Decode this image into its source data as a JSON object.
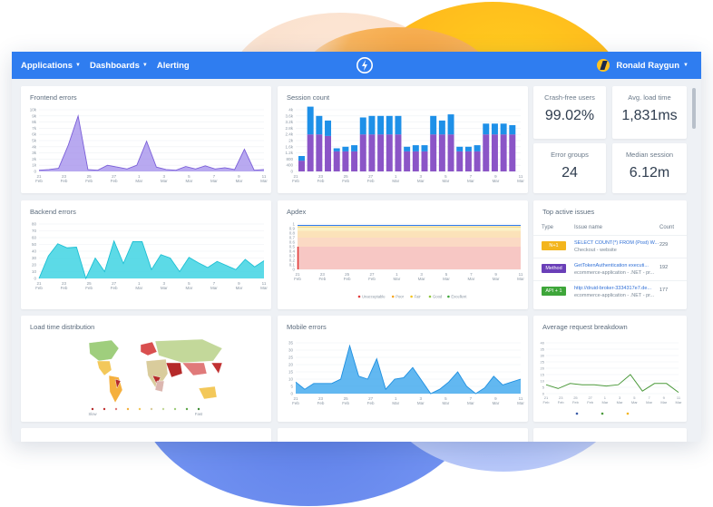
{
  "nav": {
    "applications": "Applications",
    "dashboards": "Dashboards",
    "alerting": "Alerting",
    "user_name": "Ronald Raygun"
  },
  "colors": {
    "brand": "#2f7df0",
    "purple": "#8b6fe0",
    "cyan": "#3fd3e3",
    "blue": "#2d8ee8",
    "green": "#4c9a3c"
  },
  "cards": {
    "frontend_errors": {
      "title": "Frontend errors",
      "yticks": [
        "10k",
        "9k",
        "8k",
        "7k",
        "6k",
        "5k",
        "4k",
        "3k",
        "2k",
        "1k",
        "0"
      ],
      "values": [
        0.2,
        0.3,
        0.5,
        4.3,
        9,
        0.3,
        0.2,
        1,
        0.7,
        0.4,
        1,
        4.9,
        0.7,
        0.3,
        0.2,
        0.8,
        0.4,
        0.9,
        0.4,
        0.6,
        0.3,
        3.6,
        0.2,
        0.3
      ]
    },
    "session_count": {
      "title": "Session count",
      "yticks": [
        "4k",
        "3.6k",
        "3.2k",
        "2.8k",
        "2.4k",
        "2k",
        "1.6k",
        "1.2k",
        "800",
        "400",
        "0"
      ],
      "stack_a": [
        0.7,
        2.4,
        2.4,
        2.3,
        1.3,
        1.3,
        1.3,
        2.4,
        2.4,
        2.4,
        2.4,
        2.4,
        1.3,
        1.3,
        1.3,
        2.4,
        2.4,
        2.4,
        1.3,
        1.3,
        1.3,
        2.4,
        2.4,
        2.4,
        2.4
      ],
      "stack_b": [
        0.3,
        1.8,
        1.2,
        1.0,
        0.2,
        0.3,
        0.4,
        1.1,
        1.2,
        1.2,
        1.2,
        1.2,
        0.3,
        0.4,
        0.4,
        1.2,
        0.9,
        1.3,
        0.3,
        0.3,
        0.4,
        0.7,
        0.7,
        0.7,
        0.6
      ]
    },
    "crash_free": {
      "label": "Crash-free users",
      "value": "99.02%"
    },
    "avg_load": {
      "label": "Avg. load time",
      "value": "1,831ms"
    },
    "error_groups": {
      "label": "Error groups",
      "value": "24"
    },
    "median_session": {
      "label": "Median session",
      "value": "6.12m"
    },
    "backend_errors": {
      "title": "Backend errors",
      "yticks": [
        "80",
        "70",
        "60",
        "50",
        "40",
        "30",
        "20",
        "10",
        "0"
      ],
      "values": [
        0,
        33,
        51,
        45,
        46,
        0,
        30,
        10,
        55,
        22,
        54,
        54,
        13,
        35,
        30,
        10,
        31,
        23,
        16,
        25,
        19,
        13,
        28,
        17,
        26
      ]
    },
    "apdex": {
      "title": "Apdex",
      "yticks": [
        "1",
        "0.9",
        "0.8",
        "0.7",
        "0.6",
        "0.5",
        "0.4",
        "0.3",
        "0.2",
        "0.1",
        "0"
      ],
      "legend": [
        "Unacceptable",
        "Poor",
        "Fair",
        "Good",
        "Excellent"
      ]
    },
    "top_issues": {
      "title": "Top active issues",
      "col_type": "Type",
      "col_name": "Issue name",
      "col_count": "Count",
      "rows": [
        {
          "badge": "N+1",
          "color": "#f3b51d",
          "name": "SELECT COUNT(*) FROM (Post) W...",
          "sub": "Checkout - website",
          "count": "229"
        },
        {
          "badge": "Method",
          "color": "#6a3fb8",
          "name": "GetTokenAuthentication executi...",
          "sub": "ecommerce-application - .NET - pr...",
          "count": "192"
        },
        {
          "badge": "API + 1",
          "color": "#3ea63a",
          "name": "http://druid-broker-3334317e7.de...",
          "sub": "ecommerce-application - .NET - pr...",
          "count": "177"
        }
      ]
    },
    "load_time": {
      "title": "Load time distribution",
      "legend_min": "Slow",
      "legend_max": "Fast"
    },
    "mobile_errors": {
      "title": "Mobile errors",
      "yticks": [
        "35",
        "30",
        "25",
        "20",
        "15",
        "10",
        "5",
        "0"
      ],
      "values": [
        8,
        3,
        7,
        7,
        7,
        10,
        33,
        12,
        10,
        24,
        3,
        10,
        11,
        18,
        9,
        0,
        3,
        8,
        15,
        5,
        0,
        4,
        12,
        6,
        8,
        10
      ]
    },
    "avg_request": {
      "title": "Average request breakdown",
      "yticks": [
        "40",
        "35",
        "30",
        "25",
        "20",
        "15",
        "10",
        "5",
        "0"
      ],
      "values": [
        7,
        4,
        8,
        7,
        7,
        6,
        7,
        15,
        2,
        8,
        8,
        1
      ]
    }
  },
  "x_axis": {
    "days": [
      "21",
      "23",
      "25",
      "27",
      "1",
      "3",
      "5",
      "7",
      "9",
      "11"
    ],
    "months": [
      "Feb",
      "Feb",
      "Feb",
      "Feb",
      "Mar",
      "Mar",
      "Mar",
      "Mar",
      "Mar",
      "Mar"
    ]
  }
}
